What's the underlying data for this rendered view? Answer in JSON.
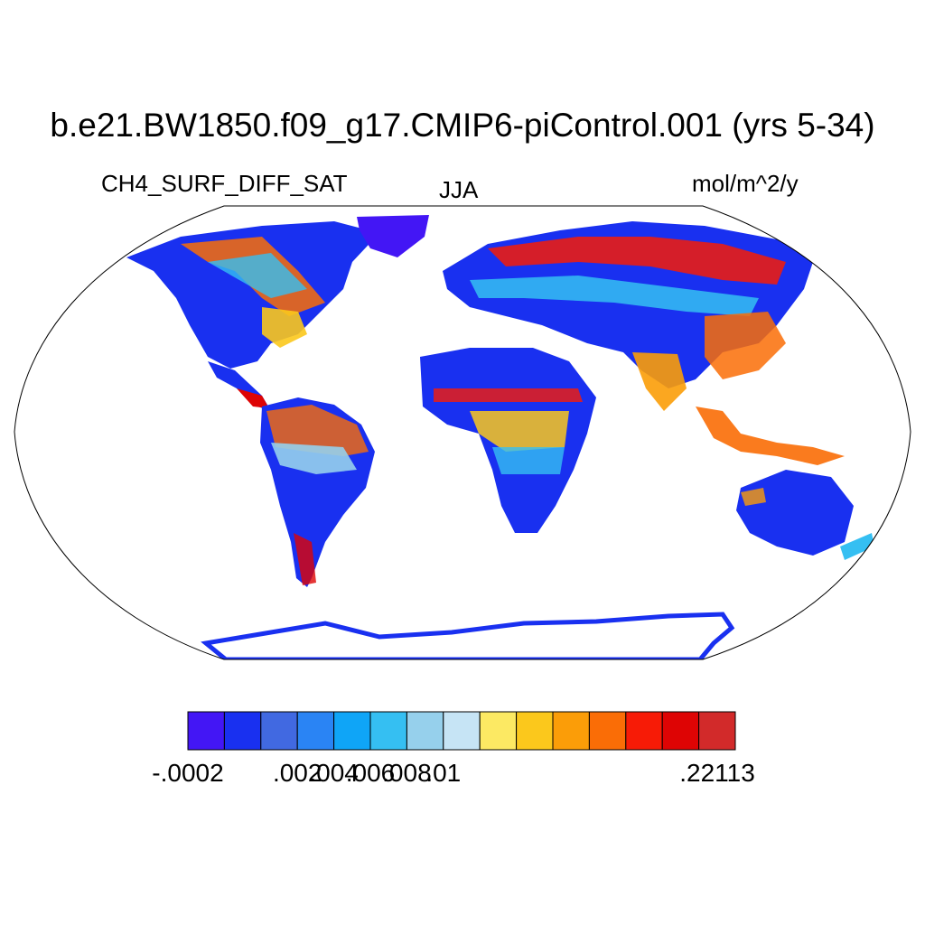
{
  "title": "b.e21.BW1850.f09_g17.CMIP6-piControl.001 (yrs 5-34)",
  "left_label": "CH4_SURF_DIFF_SAT",
  "center_label": "JJA",
  "right_label": "mol/m^2/y",
  "map": {
    "projection": "Robinson",
    "variable": "CH4_SURF_DIFF_SAT",
    "season": "JJA",
    "units": "mol/m^2/y",
    "colorbar": {
      "colors": [
        "#4316f5",
        "#1930f0",
        "#4169e1",
        "#2a84f4",
        "#0fa5f7",
        "#35bff2",
        "#96d0ec",
        "#c6e4f5",
        "#fce963",
        "#fbc81c",
        "#fb9d08",
        "#fa6d06",
        "#f71b06",
        "#de0404",
        "#d22a2a"
      ],
      "tick_labels": [
        "-.0002",
        "",
        ".002",
        ".004",
        ".006",
        ".008",
        ".01",
        "",
        ".22113"
      ],
      "tick_positions_index": [
        0,
        1,
        2,
        3,
        4,
        5,
        6,
        7,
        8
      ]
    }
  }
}
